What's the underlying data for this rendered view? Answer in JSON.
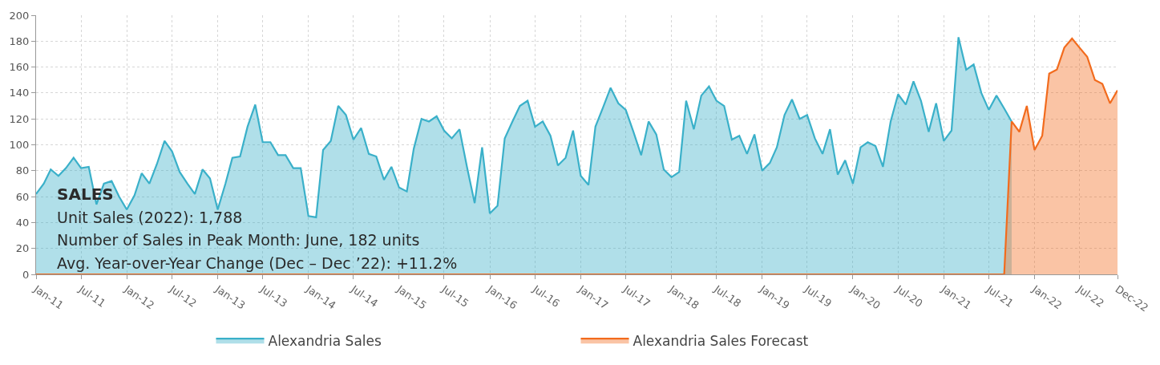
{
  "chart_data": {
    "type": "area",
    "x": [
      "2011-01",
      "2011-02",
      "2011-03",
      "2011-04",
      "2011-05",
      "2011-06",
      "2011-07",
      "2011-08",
      "2011-09",
      "2011-10",
      "2011-11",
      "2011-12",
      "2012-01",
      "2012-02",
      "2012-03",
      "2012-04",
      "2012-05",
      "2012-06",
      "2012-07",
      "2012-08",
      "2012-09",
      "2012-10",
      "2012-11",
      "2012-12",
      "2013-01",
      "2013-02",
      "2013-03",
      "2013-04",
      "2013-05",
      "2013-06",
      "2013-07",
      "2013-08",
      "2013-09",
      "2013-10",
      "2013-11",
      "2013-12",
      "2014-01",
      "2014-02",
      "2014-03",
      "2014-04",
      "2014-05",
      "2014-06",
      "2014-07",
      "2014-08",
      "2014-09",
      "2014-10",
      "2014-11",
      "2014-12",
      "2015-01",
      "2015-02",
      "2015-03",
      "2015-04",
      "2015-05",
      "2015-06",
      "2015-07",
      "2015-08",
      "2015-09",
      "2015-10",
      "2015-11",
      "2015-12",
      "2016-01",
      "2016-02",
      "2016-03",
      "2016-04",
      "2016-05",
      "2016-06",
      "2016-07",
      "2016-08",
      "2016-09",
      "2016-10",
      "2016-11",
      "2016-12",
      "2017-01",
      "2017-02",
      "2017-03",
      "2017-04",
      "2017-05",
      "2017-06",
      "2017-07",
      "2017-08",
      "2017-09",
      "2017-10",
      "2017-11",
      "2017-12",
      "2018-01",
      "2018-02",
      "2018-03",
      "2018-04",
      "2018-05",
      "2018-06",
      "2018-07",
      "2018-08",
      "2018-09",
      "2018-10",
      "2018-11",
      "2018-12",
      "2019-01",
      "2019-02",
      "2019-03",
      "2019-04",
      "2019-05",
      "2019-06",
      "2019-07",
      "2019-08",
      "2019-09",
      "2019-10",
      "2019-11",
      "2019-12",
      "2020-01",
      "2020-02",
      "2020-03",
      "2020-04",
      "2020-05",
      "2020-06",
      "2020-07",
      "2020-08",
      "2020-09",
      "2020-10",
      "2020-11",
      "2020-12",
      "2021-01",
      "2021-02",
      "2021-03",
      "2021-04",
      "2021-05",
      "2021-06",
      "2021-07",
      "2021-08",
      "2021-09",
      "2021-10",
      "2021-11",
      "2021-12",
      "2022-01",
      "2022-02",
      "2022-03",
      "2022-04",
      "2022-05",
      "2022-06",
      "2022-07",
      "2022-08",
      "2022-09",
      "2022-10",
      "2022-11",
      "2022-12"
    ],
    "series": [
      {
        "name": "Alexandria Sales",
        "color": "#3ab0c9",
        "values": [
          62,
          70,
          81,
          76,
          82,
          90,
          82,
          83,
          54,
          70,
          72,
          60,
          50,
          61,
          78,
          70,
          85,
          103,
          95,
          79,
          70,
          62,
          81,
          74,
          50,
          70,
          90,
          91,
          114,
          131,
          102,
          102,
          92,
          92,
          82,
          82,
          45,
          44,
          96,
          103,
          130,
          123,
          104,
          113,
          93,
          91,
          73,
          83,
          67,
          64,
          97,
          120,
          118,
          122,
          111,
          105,
          112,
          83,
          55,
          98,
          47,
          53,
          105,
          118,
          130,
          134,
          114,
          118,
          107,
          84,
          90,
          111,
          76,
          69,
          114,
          129,
          144,
          132,
          127,
          110,
          92,
          118,
          108,
          81,
          75,
          79,
          134,
          112,
          138,
          145,
          134,
          130,
          104,
          107,
          93,
          108,
          80,
          86,
          98,
          123,
          135,
          120,
          123,
          105,
          93,
          112,
          77,
          88,
          70,
          98,
          102,
          99,
          83,
          118,
          139,
          131,
          149,
          134,
          110,
          132,
          103,
          111,
          183,
          158,
          162,
          140,
          127,
          138,
          128,
          118,
          null,
          null,
          null,
          null,
          null,
          null,
          null,
          null,
          null,
          null,
          null,
          null,
          null,
          null
        ]
      },
      {
        "name": "Alexandria Sales Forecast",
        "color": "#f26b1d",
        "values": [
          0,
          0,
          0,
          0,
          0,
          0,
          0,
          0,
          0,
          0,
          0,
          0,
          0,
          0,
          0,
          0,
          0,
          0,
          0,
          0,
          0,
          0,
          0,
          0,
          0,
          0,
          0,
          0,
          0,
          0,
          0,
          0,
          0,
          0,
          0,
          0,
          0,
          0,
          0,
          0,
          0,
          0,
          0,
          0,
          0,
          0,
          0,
          0,
          0,
          0,
          0,
          0,
          0,
          0,
          0,
          0,
          0,
          0,
          0,
          0,
          0,
          0,
          0,
          0,
          0,
          0,
          0,
          0,
          0,
          0,
          0,
          0,
          0,
          0,
          0,
          0,
          0,
          0,
          0,
          0,
          0,
          0,
          0,
          0,
          0,
          0,
          0,
          0,
          0,
          0,
          0,
          0,
          0,
          0,
          0,
          0,
          0,
          0,
          0,
          0,
          0,
          0,
          0,
          0,
          0,
          0,
          0,
          0,
          0,
          0,
          0,
          0,
          0,
          0,
          0,
          0,
          0,
          0,
          0,
          0,
          0,
          0,
          0,
          0,
          0,
          0,
          0,
          0,
          0,
          118,
          110,
          130,
          96,
          107,
          155,
          158,
          175,
          182,
          175,
          168,
          150,
          147,
          132,
          142
        ]
      }
    ],
    "ylim": [
      0,
      200
    ],
    "yticks": [
      0,
      20,
      40,
      60,
      80,
      100,
      120,
      140,
      160,
      180,
      200
    ],
    "xlim": [
      "2011-01",
      "2022-12"
    ],
    "xticks": [
      {
        "value": "2011-01",
        "label": "Jan-11"
      },
      {
        "value": "2011-07",
        "label": "Jul-11"
      },
      {
        "value": "2012-01",
        "label": "Jan-12"
      },
      {
        "value": "2012-07",
        "label": "Jul-12"
      },
      {
        "value": "2013-01",
        "label": "Jan-13"
      },
      {
        "value": "2013-07",
        "label": "Jul-13"
      },
      {
        "value": "2014-01",
        "label": "Jan-14"
      },
      {
        "value": "2014-07",
        "label": "Jul-14"
      },
      {
        "value": "2015-01",
        "label": "Jan-15"
      },
      {
        "value": "2015-07",
        "label": "Jul-15"
      },
      {
        "value": "2016-01",
        "label": "Jan-16"
      },
      {
        "value": "2016-07",
        "label": "Jul-16"
      },
      {
        "value": "2017-01",
        "label": "Jan-17"
      },
      {
        "value": "2017-07",
        "label": "Jul-17"
      },
      {
        "value": "2018-01",
        "label": "Jan-18"
      },
      {
        "value": "2018-07",
        "label": "Jul-18"
      },
      {
        "value": "2019-01",
        "label": "Jan-19"
      },
      {
        "value": "2019-07",
        "label": "Jul-19"
      },
      {
        "value": "2020-01",
        "label": "Jan-20"
      },
      {
        "value": "2020-07",
        "label": "Jul-20"
      },
      {
        "value": "2021-01",
        "label": "Jan-21"
      },
      {
        "value": "2021-07",
        "label": "Jul-21"
      },
      {
        "value": "2022-01",
        "label": "Jan-22"
      },
      {
        "value": "2022-07",
        "label": "Jul-22"
      },
      {
        "value": "2022-12",
        "label": "Dec-22"
      }
    ],
    "annotations": [
      "SALES",
      "Unit Sales (2022): 1,788",
      "Number of Sales in Peak Month: June, 182 units",
      "Avg. Year-over-Year Change (Dec – Dec ’22): +11.2%"
    ],
    "grid": true,
    "legend": "bottom",
    "marker": "none",
    "line_style": "solid"
  }
}
